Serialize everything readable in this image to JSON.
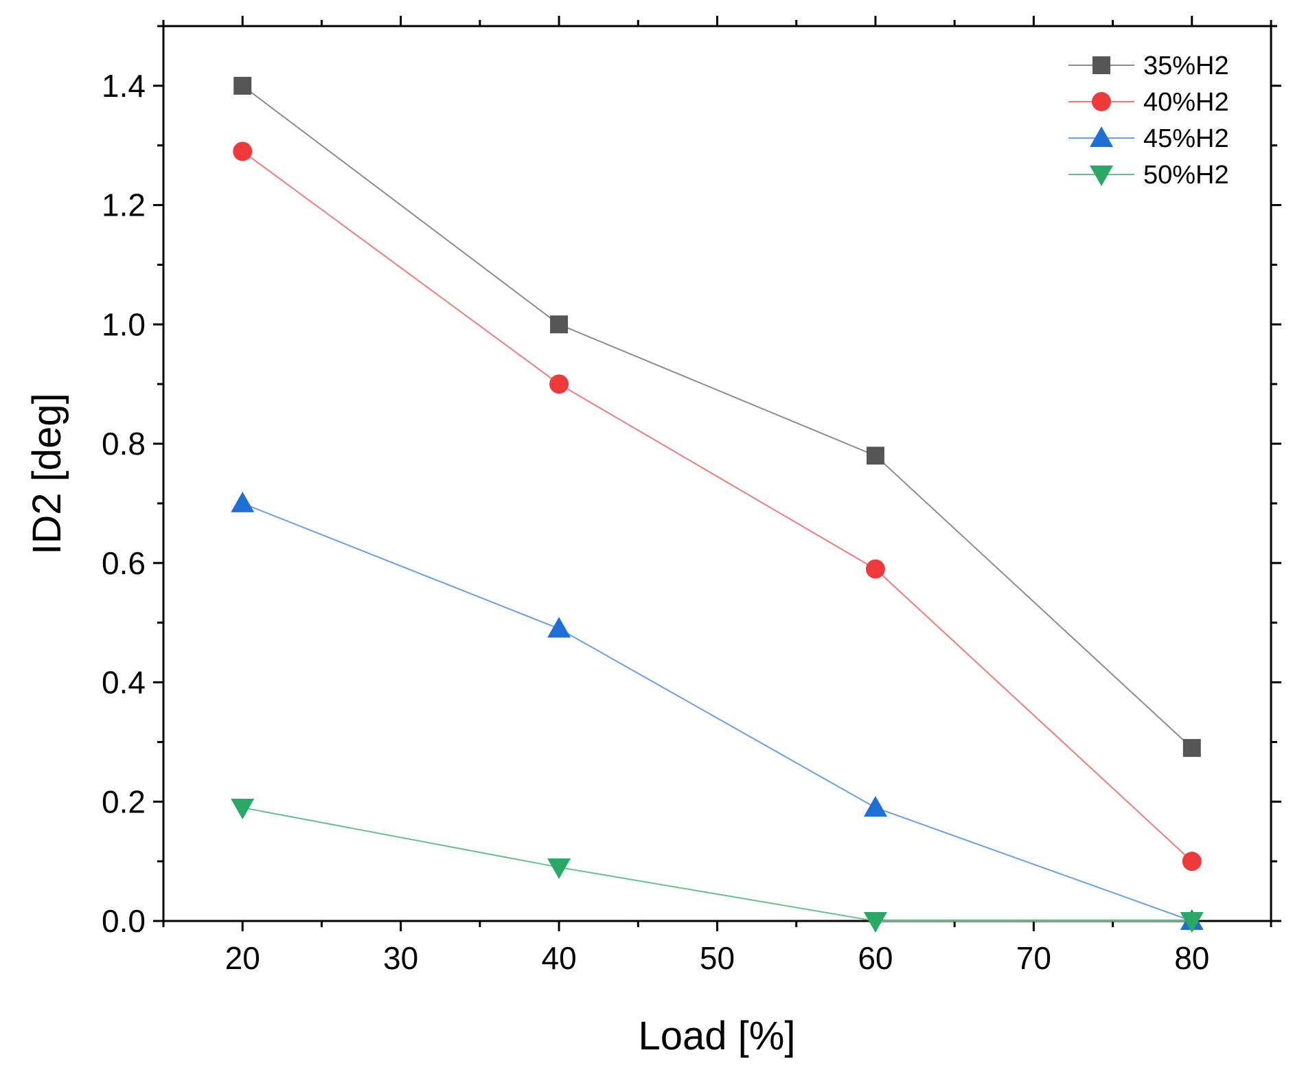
{
  "chart_data": {
    "type": "line",
    "title": "",
    "xlabel": "Load [%]",
    "ylabel": "ID2 [deg]",
    "xlim": [
      15,
      85
    ],
    "ylim": [
      0.0,
      1.5
    ],
    "xticks": [
      20,
      30,
      40,
      50,
      60,
      70,
      80
    ],
    "yticks": [
      0.0,
      0.2,
      0.4,
      0.6,
      0.8,
      1.0,
      1.2,
      1.4
    ],
    "xtick_labels": [
      "20",
      "30",
      "40",
      "50",
      "60",
      "70",
      "80"
    ],
    "ytick_labels": [
      "0.0",
      "0.2",
      "0.4",
      "0.6",
      "0.8",
      "1.0",
      "1.2",
      "1.4"
    ],
    "grid": false,
    "legend_position": "top-right",
    "x": [
      20,
      40,
      60,
      80
    ],
    "series": [
      {
        "name": "35%H2",
        "values": [
          1.4,
          1.0,
          0.78,
          0.29
        ],
        "color": "#555555",
        "line_color": "#8c8c8c",
        "marker": "square"
      },
      {
        "name": "40%H2",
        "values": [
          1.29,
          0.9,
          0.59,
          0.1
        ],
        "color": "#ee3a3a",
        "line_color": "#f47a7a",
        "marker": "circle"
      },
      {
        "name": "45%H2",
        "values": [
          0.7,
          0.49,
          0.19,
          0.0
        ],
        "color": "#1f6fd8",
        "line_color": "#6a9ee8",
        "marker": "triangle-up"
      },
      {
        "name": "50%H2",
        "values": [
          0.19,
          0.09,
          0.0,
          0.0
        ],
        "color": "#2aa865",
        "line_color": "#68c08f",
        "marker": "triangle-down"
      }
    ]
  }
}
